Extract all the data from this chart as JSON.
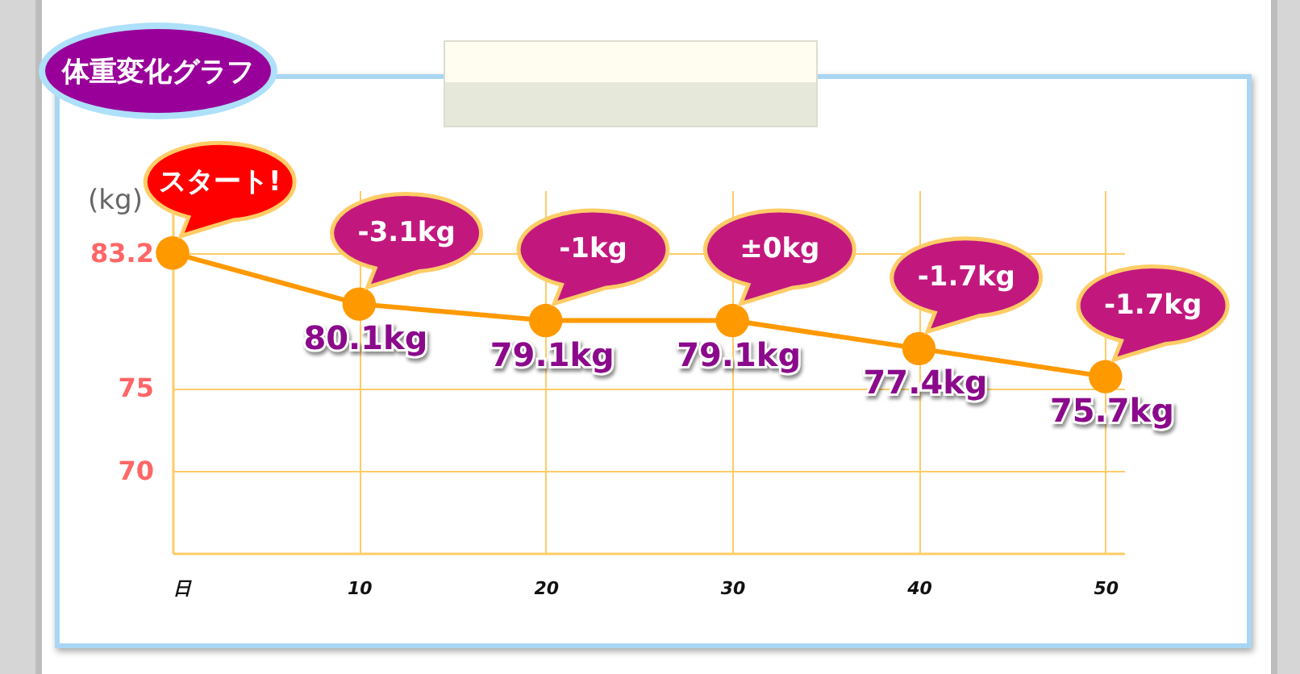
{
  "chart_data": {
    "type": "line",
    "title": "体重変化グラフ",
    "ylabel": "(kg)",
    "x": [
      0,
      10,
      20,
      30,
      40,
      50
    ],
    "series": [
      {
        "color": "#ff9900",
        "values": [
          83.2,
          80.1,
          79.1,
          79.1,
          77.4,
          75.7
        ],
        "value_labels": [
          null,
          "80.1kg",
          "79.1kg",
          "79.1kg",
          "77.4kg",
          "75.7kg"
        ]
      }
    ],
    "xlim": [
      0,
      51
    ],
    "xticks": [
      {
        "value": 0,
        "label": "日"
      },
      10,
      20,
      30,
      40,
      50
    ],
    "ylim": [
      65,
      87
    ],
    "yticks": [
      83.2,
      75,
      70
    ],
    "grid": true,
    "marker": "circle",
    "annotations": [
      {
        "text": "スタート!",
        "x": 0,
        "y": 83.2
      },
      {
        "text": "-3.1kg",
        "x": 10,
        "y": 80.1
      },
      {
        "text": "-1kg",
        "x": 20,
        "y": 79.1
      },
      {
        "text": "±0kg",
        "x": 30,
        "y": 79.1
      },
      {
        "text": "-1.7kg",
        "x": 40,
        "y": 77.4
      },
      {
        "text": "-1.7kg",
        "x": 50,
        "y": 75.7
      }
    ]
  }
}
